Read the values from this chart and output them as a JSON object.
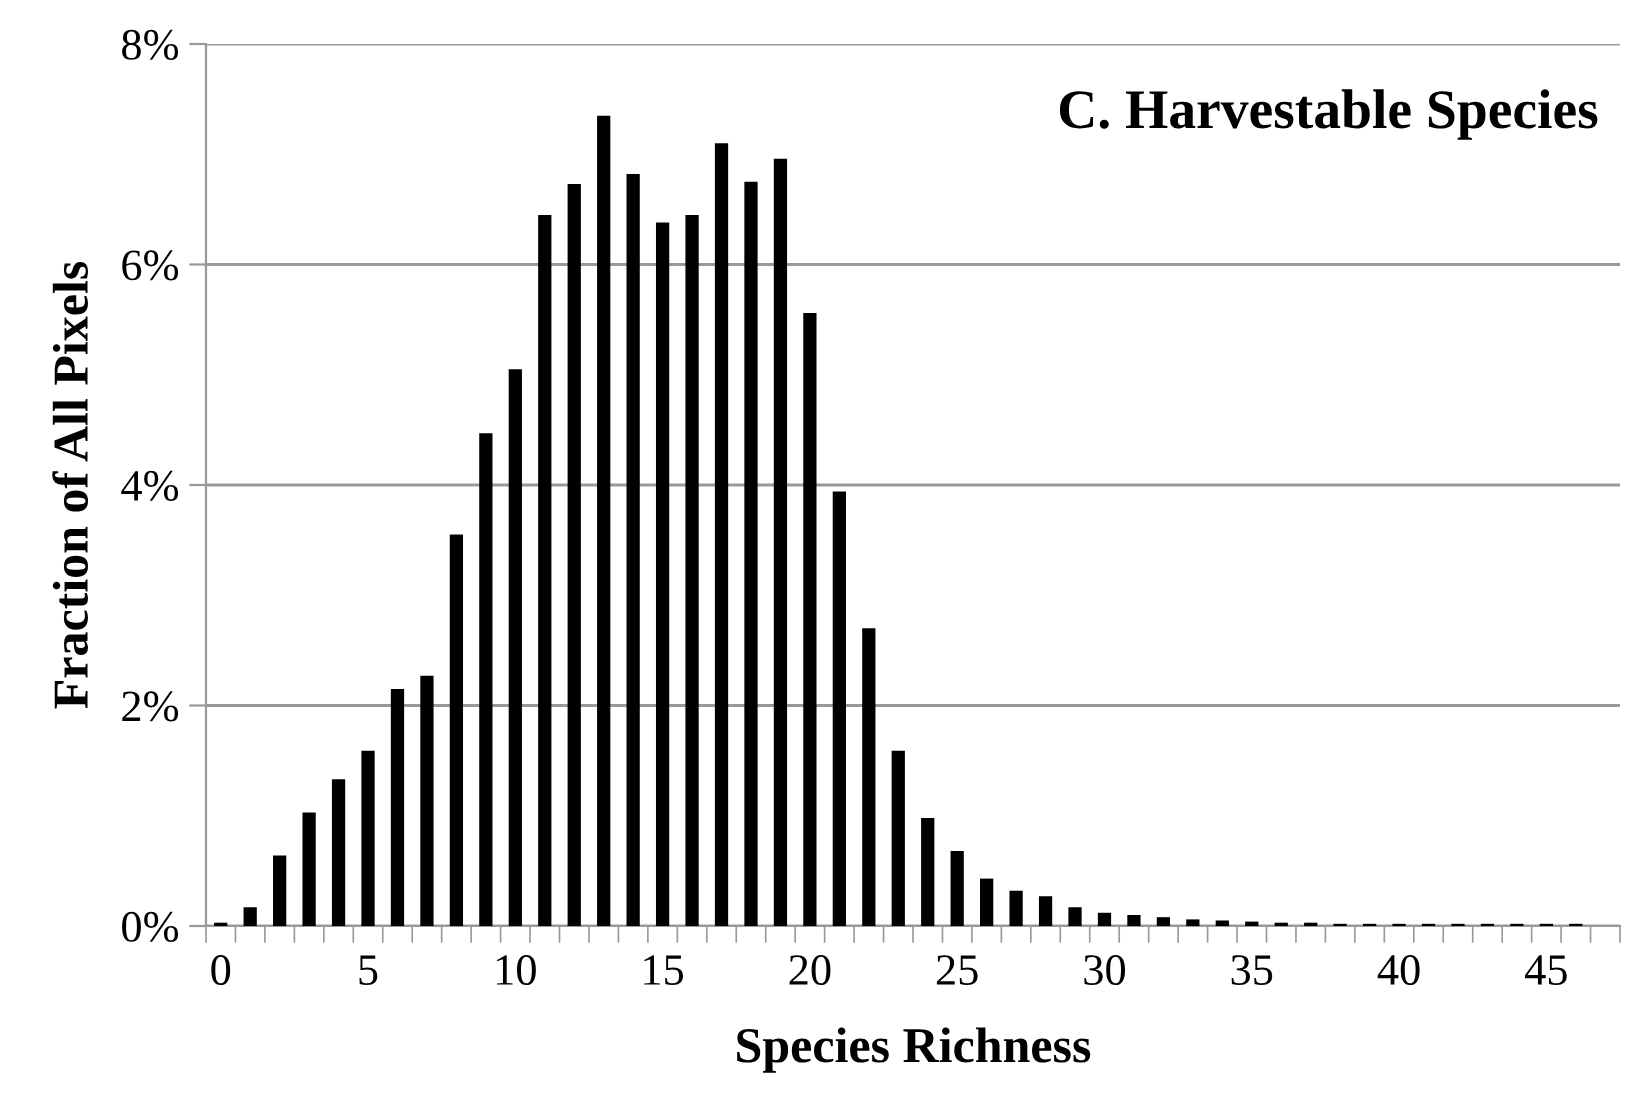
{
  "chart_data": {
    "type": "bar",
    "title": "C. Harvestable Species",
    "xlabel": "Species Richness",
    "ylabel": "Fraction of All Pixels",
    "categories": [
      "0",
      null,
      null,
      null,
      null,
      "5",
      null,
      null,
      null,
      null,
      "10",
      null,
      null,
      null,
      null,
      "15",
      null,
      null,
      null,
      null,
      "20",
      null,
      null,
      null,
      null,
      "25",
      null,
      null,
      null,
      null,
      "30",
      null,
      null,
      null,
      null,
      "35",
      null,
      null,
      null,
      null,
      "40",
      null,
      null,
      null,
      null,
      "45",
      null,
      null
    ],
    "values": [
      0.03,
      0.17,
      0.64,
      1.03,
      1.33,
      1.59,
      2.15,
      2.27,
      3.55,
      4.47,
      5.05,
      6.45,
      6.73,
      7.35,
      6.82,
      6.38,
      6.45,
      7.1,
      6.75,
      6.96,
      5.56,
      3.94,
      2.7,
      1.59,
      0.98,
      0.68,
      0.43,
      0.32,
      0.27,
      0.17,
      0.12,
      0.1,
      0.08,
      0.06,
      0.05,
      0.04,
      0.03,
      0.03,
      0.02,
      0.02,
      0.02,
      0.02,
      0.02,
      0.02,
      0.02,
      0.02,
      0.02,
      0
    ],
    "color": "#000000",
    "ylim": [
      0,
      8
    ],
    "yticks": [
      {
        "value": 0,
        "label": "0%"
      },
      {
        "value": 2,
        "label": "2%"
      },
      {
        "value": 4,
        "label": "4%"
      },
      {
        "value": 6,
        "label": "6%"
      },
      {
        "value": 8,
        "label": "8%"
      }
    ],
    "grid": "y"
  }
}
